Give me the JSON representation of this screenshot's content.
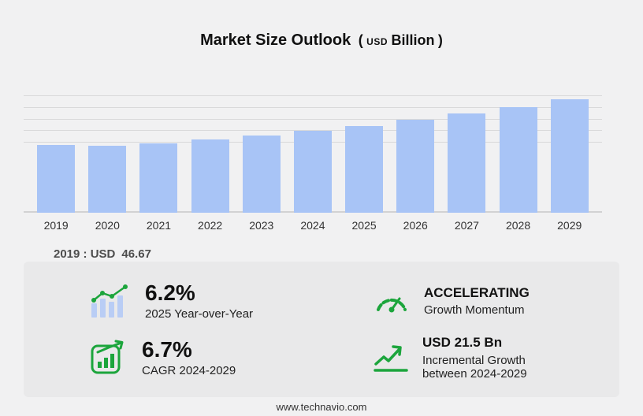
{
  "title": {
    "main": "Market Size Outlook",
    "open_paren": "(",
    "currency": "USD",
    "unit": "Billion",
    "close_paren": ")"
  },
  "chart_data": {
    "type": "bar",
    "title": "Market Size Outlook (USD Billion)",
    "categories": [
      "2019",
      "2020",
      "2021",
      "2022",
      "2023",
      "2024",
      "2025",
      "2026",
      "2027",
      "2028",
      "2029"
    ],
    "values": [
      46.67,
      45.95,
      47.8,
      50.3,
      52.9,
      56.1,
      59.6,
      63.6,
      67.9,
      72.4,
      77.6
    ],
    "ylim": [
      0,
      80
    ],
    "gridline_values": [
      48,
      56,
      64,
      72,
      80
    ],
    "bar_color": "#a8c4f6",
    "grid": "horizontal-partial",
    "legend": "none",
    "annotation": "2019 : USD 46.67"
  },
  "annotation": {
    "label": "2019 : USD",
    "value": "46.67"
  },
  "stats": {
    "yoy": {
      "value": "6.2%",
      "label": "2025 Year-over-Year"
    },
    "momentum": {
      "value": "ACCELERATING",
      "label": "Growth Momentum"
    },
    "cagr": {
      "value": "6.7%",
      "label": "CAGR 2024-2029"
    },
    "incremental": {
      "value": "USD 21.5 Bn",
      "label": "Incremental Growth between 2024-2029"
    }
  },
  "footer": {
    "url": "www.technavio.com"
  },
  "colors": {
    "bar": "#a8c4f6",
    "icon_green": "#1ca53c",
    "panel": "#e9e9ea"
  }
}
